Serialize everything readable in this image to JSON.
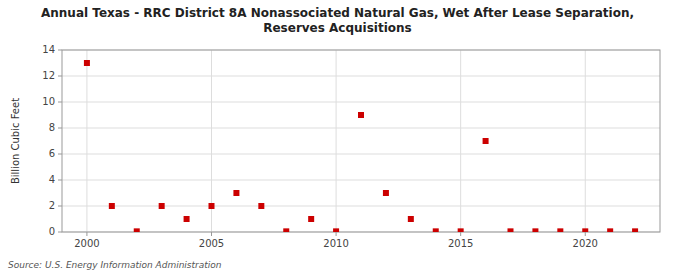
{
  "chart_data": {
    "type": "scatter",
    "title": "Annual Texas - RRC District 8A Nonassociated Natural Gas, Wet After Lease Separation,\nReserves Acquisitions",
    "y_label": "Billion Cubic Feet",
    "source": "Source: U.S. Energy Information Administration",
    "x": [
      2000,
      2001,
      2002,
      2003,
      2004,
      2005,
      2006,
      2007,
      2008,
      2009,
      2010,
      2011,
      2012,
      2013,
      2014,
      2015,
      2016,
      2017,
      2018,
      2019,
      2020,
      2021,
      2022
    ],
    "values": [
      13.0,
      2.0,
      0.05,
      2.0,
      1.0,
      2.0,
      3.0,
      2.0,
      0.05,
      1.0,
      0.05,
      9.0,
      3.0,
      1.0,
      0.05,
      0.05,
      7.0,
      0.05,
      0.05,
      0.05,
      0.05,
      0.05,
      0.05
    ],
    "color": "#cc0000",
    "marker": "square",
    "xlim": [
      1999,
      2023
    ],
    "ylim": [
      0,
      14
    ],
    "xticks": [
      2000,
      2005,
      2010,
      2015,
      2020
    ],
    "yticks": [
      0,
      2,
      4,
      6,
      8,
      10,
      12,
      14
    ],
    "grid": true
  }
}
